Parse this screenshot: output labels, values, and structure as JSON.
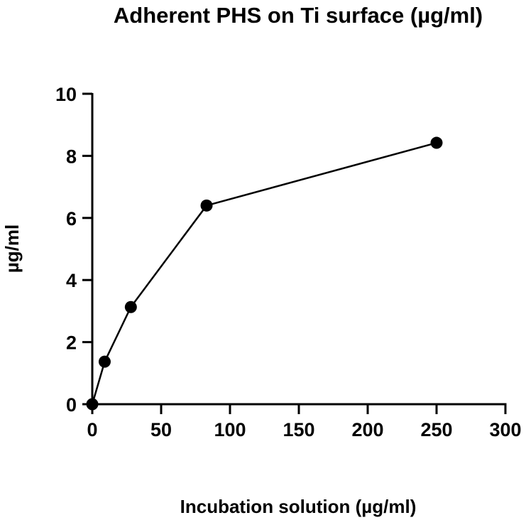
{
  "chart_data": {
    "type": "line",
    "title": "Adherent PHS on Ti surface (µg/ml)",
    "xlabel": "Incubation solution (µg/ml)",
    "ylabel": "µg/ml",
    "xlim": [
      0,
      300
    ],
    "ylim": [
      0,
      10
    ],
    "xticks": [
      0,
      50,
      100,
      150,
      200,
      250,
      300
    ],
    "yticks": [
      0,
      2,
      4,
      6,
      8,
      10
    ],
    "grid": false,
    "legend": "none",
    "series": [
      {
        "marker": "circle",
        "color": "#000000",
        "points": [
          {
            "x": 0,
            "y": 0
          },
          {
            "x": 9,
            "y": 1.37
          },
          {
            "x": 28,
            "y": 3.13
          },
          {
            "x": 83,
            "y": 6.4
          },
          {
            "x": 250,
            "y": 8.42
          }
        ]
      }
    ]
  }
}
